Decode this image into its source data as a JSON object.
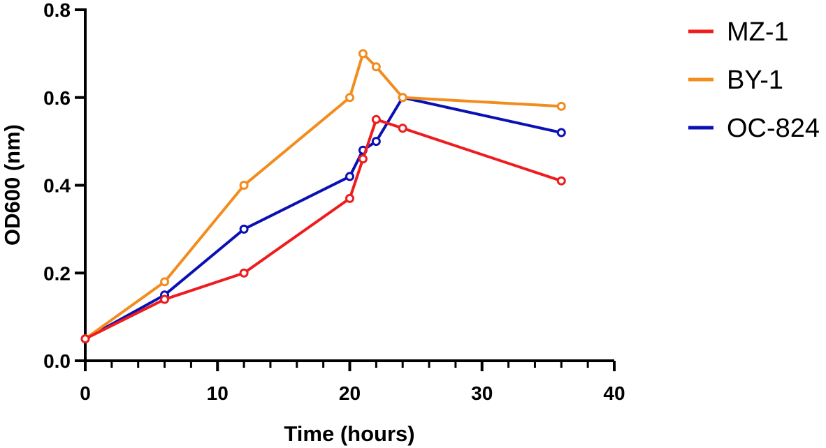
{
  "chart_data": {
    "type": "line",
    "title": "",
    "xlabel": "Time (hours)",
    "ylabel": "OD600 (nm)",
    "xlim": [
      0,
      40
    ],
    "ylim": [
      0,
      0.8
    ],
    "x_ticks": [
      0,
      10,
      20,
      30,
      40
    ],
    "x_tick_labels": [
      "0",
      "10",
      "20",
      "30",
      "40"
    ],
    "x_minor_step": 2,
    "y_ticks": [
      0,
      0.2,
      0.4,
      0.6,
      0.8
    ],
    "y_tick_labels": [
      "0.0",
      "0.2",
      "0.4",
      "0.6",
      "0.8"
    ],
    "grid": false,
    "legend_position": "top-right",
    "series": [
      {
        "name": "OC-824",
        "color": "#0a10b4",
        "x": [
          0,
          6,
          12,
          20,
          21,
          22,
          24,
          36
        ],
        "values": [
          0.05,
          0.15,
          0.3,
          0.42,
          0.48,
          0.5,
          0.6,
          0.52
        ]
      },
      {
        "name": "BY-1",
        "color": "#f28c1c",
        "x": [
          0,
          6,
          12,
          20,
          21,
          22,
          24,
          36
        ],
        "values": [
          0.05,
          0.18,
          0.4,
          0.6,
          0.7,
          0.67,
          0.6,
          0.58
        ]
      },
      {
        "name": "MZ-1",
        "color": "#ee1c1c",
        "x": [
          0,
          6,
          12,
          20,
          21,
          22,
          24,
          36
        ],
        "values": [
          0.05,
          0.14,
          0.2,
          0.37,
          0.46,
          0.55,
          0.53,
          0.41
        ]
      }
    ],
    "legend_order": [
      "MZ-1",
      "BY-1",
      "OC-824"
    ]
  }
}
